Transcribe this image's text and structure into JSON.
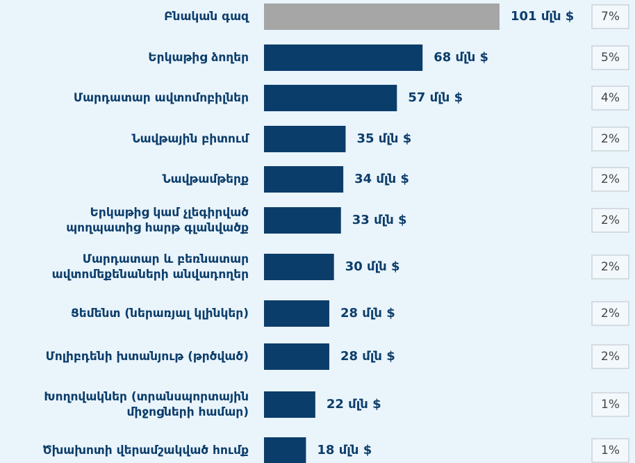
{
  "chart_data": {
    "type": "bar",
    "orientation": "horizontal",
    "categories": [
      "Բնական գազ",
      "Երկաթից ձողեր",
      "Մարդատար ավտոմոբիլներ",
      "Նավթային բիտում",
      "Նավթամթերք",
      "Երկաթից կամ չլեգիրված\nպողպատից հարթ գլանվածք",
      "Մարդատար և բեռնատար\nավտոմեքենաների անվադողեր",
      "Ցեմենտ (ներառյալ կլինկեր)",
      "Մոլիբդենի խտանյութ (թրծված)",
      "Խողովակներ (տրանսպորտային\nմիջոցների համար)",
      "Ծխախոտի վերամշակված հումք"
    ],
    "values": [
      101,
      68,
      57,
      35,
      34,
      33,
      30,
      28,
      28,
      22,
      18
    ],
    "value_labels": [
      "101 մլն $",
      "68 մլն $",
      "57 մլն $",
      "35 մլն $",
      "34 մլն $",
      "33 մլն $",
      "30 մլն $",
      "28 մլն $",
      "28 մլն $",
      "22 մլն $",
      "18 մլն $"
    ],
    "colors": [
      "#a6a6a6",
      "#0b3d6b",
      "#0b3d6b",
      "#0b3d6b",
      "#0b3d6b",
      "#0b3d6b",
      "#0b3d6b",
      "#0b3d6b",
      "#0b3d6b",
      "#0b3d6b",
      "#0b3d6b"
    ],
    "shares": [
      7,
      5,
      4,
      2,
      2,
      2,
      2,
      2,
      2,
      1,
      1
    ],
    "share_labels": [
      "7%",
      "5%",
      "4%",
      "2%",
      "2%",
      "2%",
      "2%",
      "2%",
      "2%",
      "1%",
      "1%"
    ]
  }
}
